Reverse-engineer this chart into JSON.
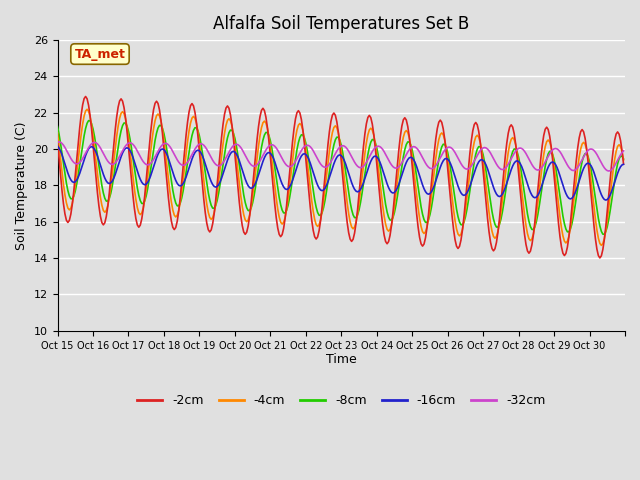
{
  "title": "Alfalfa Soil Temperatures Set B",
  "xlabel": "Time",
  "ylabel": "Soil Temperature (C)",
  "ylim": [
    10,
    26
  ],
  "background_color": "#e0e0e0",
  "plot_bg_color": "#e0e0e0",
  "grid_color": "white",
  "colors": {
    "-2cm": "#dd2222",
    "-4cm": "#ff8800",
    "-8cm": "#22cc00",
    "-16cm": "#2222cc",
    "-32cm": "#cc44cc"
  },
  "legend_annotation": "TA_met",
  "tick_labels": [
    "Oct 15",
    "Oct 16",
    "Oct 17",
    "Oct 18",
    "Oct 19",
    "Oct 20",
    "Oct 21",
    "Oct 22",
    "Oct 23",
    "Oct 24",
    "Oct 25",
    "Oct 26",
    "Oct 27",
    "Oct 28",
    "Oct 29",
    "Oct 30",
    ""
  ],
  "series_labels": [
    "-2cm",
    "-4cm",
    "-8cm",
    "-16cm",
    "-32cm"
  ],
  "yticks": [
    10,
    12,
    14,
    16,
    18,
    20,
    22,
    24,
    26
  ]
}
